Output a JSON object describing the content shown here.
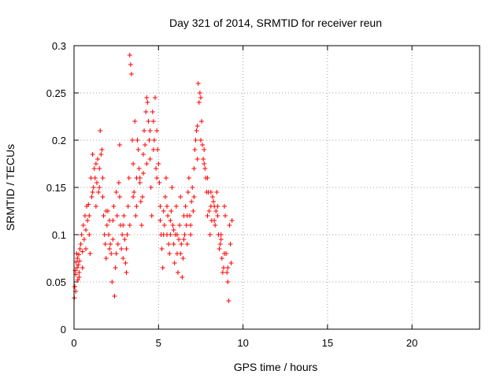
{
  "chart_data": {
    "type": "scatter",
    "title": "Day 321 of 2014, SRMTID for receiver reun",
    "xlabel": "GPS time / hours",
    "ylabel": "SRMTID / TECUs",
    "xlim": [
      0,
      24
    ],
    "ylim": [
      0,
      0.3
    ],
    "xticks": [
      0,
      5,
      10,
      15,
      20
    ],
    "xtick_labels": [
      "0",
      "5",
      "10",
      "15",
      "20"
    ],
    "yticks": [
      0,
      0.05,
      0.1,
      0.15,
      0.2,
      0.25,
      0.3
    ],
    "ytick_labels": [
      "0",
      "0.05",
      "0.1",
      "0.15",
      "0.2",
      "0.25",
      "0.3"
    ],
    "grid": true,
    "marker": "+",
    "color": "#ff0000",
    "series": [
      {
        "values": [
          [
            0.02,
            0.033
          ],
          [
            0.05,
            0.045
          ],
          [
            0.08,
            0.062
          ],
          [
            0.1,
            0.058
          ],
          [
            0.12,
            0.071
          ],
          [
            0.15,
            0.08
          ],
          [
            0.18,
            0.065
          ],
          [
            0.2,
            0.075
          ],
          [
            0.22,
            0.052
          ],
          [
            0.25,
            0.068
          ],
          [
            0.28,
            0.079
          ],
          [
            0.3,
            0.06
          ],
          [
            0.33,
            0.072
          ],
          [
            0.35,
            0.085
          ],
          [
            0.4,
            0.09
          ],
          [
            0.45,
            0.1
          ],
          [
            0.5,
            0.082
          ],
          [
            0.55,
            0.11
          ],
          [
            0.6,
            0.095
          ],
          [
            0.65,
            0.12
          ],
          [
            0.7,
            0.105
          ],
          [
            0.75,
            0.13
          ],
          [
            0.8,
            0.115
          ],
          [
            0.85,
            0.132
          ],
          [
            0.9,
            0.1
          ],
          [
            0.95,
            0.08
          ],
          [
            1.0,
            0.16
          ],
          [
            1.05,
            0.14
          ],
          [
            1.1,
            0.185
          ],
          [
            1.15,
            0.15
          ],
          [
            1.2,
            0.17
          ],
          [
            1.25,
            0.16
          ],
          [
            1.3,
            0.13
          ],
          [
            1.35,
            0.155
          ],
          [
            1.4,
            0.18
          ],
          [
            1.45,
            0.145
          ],
          [
            1.5,
            0.15
          ],
          [
            1.55,
            0.21
          ],
          [
            1.6,
            0.185
          ],
          [
            1.65,
            0.19
          ],
          [
            1.7,
            0.16
          ],
          [
            1.75,
            0.12
          ],
          [
            1.8,
            0.1
          ],
          [
            1.85,
            0.09
          ],
          [
            1.9,
            0.075
          ],
          [
            1.95,
            0.11
          ],
          [
            2.0,
            0.125
          ],
          [
            2.05,
            0.1
          ],
          [
            2.1,
            0.085
          ],
          [
            2.15,
            0.09
          ],
          [
            2.2,
            0.08
          ],
          [
            2.25,
            0.05
          ],
          [
            2.3,
            0.115
          ],
          [
            2.35,
            0.13
          ],
          [
            2.4,
            0.035
          ],
          [
            2.45,
            0.065
          ],
          [
            2.5,
            0.145
          ],
          [
            2.55,
            0.12
          ],
          [
            2.6,
            0.09
          ],
          [
            2.65,
            0.155
          ],
          [
            2.7,
            0.195
          ],
          [
            2.75,
            0.11
          ],
          [
            2.8,
            0.085
          ],
          [
            2.85,
            0.1
          ],
          [
            2.9,
            0.075
          ],
          [
            2.95,
            0.12
          ],
          [
            3.0,
            0.095
          ],
          [
            3.05,
            0.07
          ],
          [
            3.1,
            0.06
          ],
          [
            3.15,
            0.1
          ],
          [
            3.2,
            0.13
          ],
          [
            3.25,
            0.16
          ],
          [
            3.3,
            0.29
          ],
          [
            3.35,
            0.28
          ],
          [
            3.4,
            0.27
          ],
          [
            3.45,
            0.2
          ],
          [
            3.5,
            0.175
          ],
          [
            3.55,
            0.145
          ],
          [
            3.6,
            0.22
          ],
          [
            3.65,
            0.12
          ],
          [
            3.7,
            0.16
          ],
          [
            3.75,
            0.2
          ],
          [
            3.8,
            0.19
          ],
          [
            3.85,
            0.17
          ],
          [
            3.9,
            0.155
          ],
          [
            3.95,
            0.135
          ],
          [
            4.0,
            0.11
          ],
          [
            4.05,
            0.14
          ],
          [
            4.1,
            0.165
          ],
          [
            4.15,
            0.21
          ],
          [
            4.2,
            0.195
          ],
          [
            4.25,
            0.23
          ],
          [
            4.3,
            0.245
          ],
          [
            4.35,
            0.24
          ],
          [
            4.4,
            0.22
          ],
          [
            4.45,
            0.2
          ],
          [
            4.5,
            0.18
          ],
          [
            4.55,
            0.15
          ],
          [
            4.6,
            0.12
          ],
          [
            4.65,
            0.23
          ],
          [
            4.7,
            0.22
          ],
          [
            4.75,
            0.2
          ],
          [
            4.8,
            0.245
          ],
          [
            4.85,
            0.17
          ],
          [
            4.9,
            0.21
          ],
          [
            4.95,
            0.19
          ],
          [
            5.0,
            0.175
          ],
          [
            5.05,
            0.155
          ],
          [
            5.1,
            0.13
          ],
          [
            5.15,
            0.1
          ],
          [
            5.2,
            0.085
          ],
          [
            5.25,
            0.065
          ],
          [
            5.3,
            0.1
          ],
          [
            5.35,
            0.11
          ],
          [
            5.4,
            0.14
          ],
          [
            5.45,
            0.16
          ],
          [
            5.5,
            0.13
          ],
          [
            5.55,
            0.12
          ],
          [
            5.6,
            0.09
          ],
          [
            5.65,
            0.08
          ],
          [
            5.7,
            0.1
          ],
          [
            5.75,
            0.125
          ],
          [
            5.8,
            0.15
          ],
          [
            5.85,
            0.11
          ],
          [
            5.9,
            0.09
          ],
          [
            5.95,
            0.07
          ],
          [
            6.0,
            0.1
          ],
          [
            6.05,
            0.13
          ],
          [
            6.1,
            0.08
          ],
          [
            6.15,
            0.06
          ],
          [
            6.2,
            0.095
          ],
          [
            6.25,
            0.11
          ],
          [
            6.3,
            0.14
          ],
          [
            6.35,
            0.09
          ],
          [
            6.4,
            0.055
          ],
          [
            6.45,
            0.075
          ],
          [
            6.5,
            0.12
          ],
          [
            6.55,
            0.1
          ],
          [
            6.6,
            0.13
          ],
          [
            6.65,
            0.11
          ],
          [
            6.7,
            0.09
          ],
          [
            6.75,
            0.145
          ],
          [
            6.8,
            0.16
          ],
          [
            6.85,
            0.12
          ],
          [
            6.9,
            0.1
          ],
          [
            6.95,
            0.135
          ],
          [
            7.0,
            0.15
          ],
          [
            7.05,
            0.125
          ],
          [
            7.1,
            0.17
          ],
          [
            7.15,
            0.19
          ],
          [
            7.2,
            0.2
          ],
          [
            7.25,
            0.21
          ],
          [
            7.3,
            0.215
          ],
          [
            7.35,
            0.26
          ],
          [
            7.4,
            0.24
          ],
          [
            7.45,
            0.25
          ],
          [
            7.5,
            0.245
          ],
          [
            7.55,
            0.22
          ],
          [
            7.6,
            0.195
          ],
          [
            7.65,
            0.18
          ],
          [
            7.7,
            0.175
          ],
          [
            7.75,
            0.17
          ],
          [
            7.8,
            0.16
          ],
          [
            7.85,
            0.145
          ],
          [
            7.9,
            0.12
          ],
          [
            7.95,
            0.145
          ],
          [
            8.0,
            0.125
          ],
          [
            8.05,
            0.1
          ],
          [
            8.1,
            0.13
          ],
          [
            8.15,
            0.115
          ],
          [
            8.2,
            0.14
          ],
          [
            8.25,
            0.135
          ],
          [
            8.3,
            0.13
          ],
          [
            8.35,
            0.11
          ],
          [
            8.4,
            0.125
          ],
          [
            8.45,
            0.145
          ],
          [
            8.5,
            0.12
          ],
          [
            8.55,
            0.1
          ],
          [
            8.6,
            0.085
          ],
          [
            8.65,
            0.09
          ],
          [
            8.7,
            0.1
          ],
          [
            8.75,
            0.075
          ],
          [
            8.8,
            0.06
          ],
          [
            8.85,
            0.065
          ],
          [
            8.9,
            0.13
          ],
          [
            8.95,
            0.12
          ],
          [
            9.0,
            0.08
          ],
          [
            9.05,
            0.06
          ],
          [
            9.1,
            0.05
          ],
          [
            9.15,
            0.03
          ],
          [
            9.2,
            0.11
          ],
          [
            9.25,
            0.09
          ],
          [
            9.3,
            0.07
          ],
          [
            9.35,
            0.115
          ],
          [
            0.1,
            0.04
          ],
          [
            0.3,
            0.055
          ],
          [
            0.5,
            0.065
          ],
          [
            0.7,
            0.085
          ],
          [
            0.9,
            0.12
          ],
          [
            1.1,
            0.145
          ],
          [
            1.3,
            0.175
          ],
          [
            1.5,
            0.17
          ],
          [
            1.7,
            0.14
          ],
          [
            1.9,
            0.125
          ],
          [
            2.1,
            0.115
          ],
          [
            2.3,
            0.095
          ],
          [
            2.5,
            0.08
          ],
          [
            2.7,
            0.14
          ],
          [
            2.9,
            0.11
          ],
          [
            3.1,
            0.085
          ],
          [
            3.3,
            0.11
          ],
          [
            3.5,
            0.14
          ],
          [
            3.7,
            0.13
          ],
          [
            3.9,
            0.16
          ],
          [
            4.1,
            0.185
          ],
          [
            4.3,
            0.175
          ],
          [
            4.5,
            0.21
          ],
          [
            4.7,
            0.19
          ],
          [
            4.9,
            0.16
          ],
          [
            5.1,
            0.115
          ],
          [
            5.3,
            0.125
          ],
          [
            5.5,
            0.1
          ],
          [
            5.7,
            0.115
          ],
          [
            5.9,
            0.105
          ],
          [
            6.1,
            0.1
          ],
          [
            6.3,
            0.08
          ],
          [
            6.5,
            0.095
          ],
          [
            6.7,
            0.12
          ],
          [
            6.9,
            0.11
          ],
          [
            7.1,
            0.14
          ],
          [
            7.3,
            0.18
          ],
          [
            7.5,
            0.2
          ],
          [
            7.7,
            0.19
          ],
          [
            7.9,
            0.16
          ],
          [
            8.1,
            0.145
          ],
          [
            8.3,
            0.115
          ],
          [
            8.5,
            0.13
          ],
          [
            8.7,
            0.095
          ],
          [
            8.9,
            0.08
          ],
          [
            9.1,
            0.065
          ]
        ]
      }
    ]
  }
}
